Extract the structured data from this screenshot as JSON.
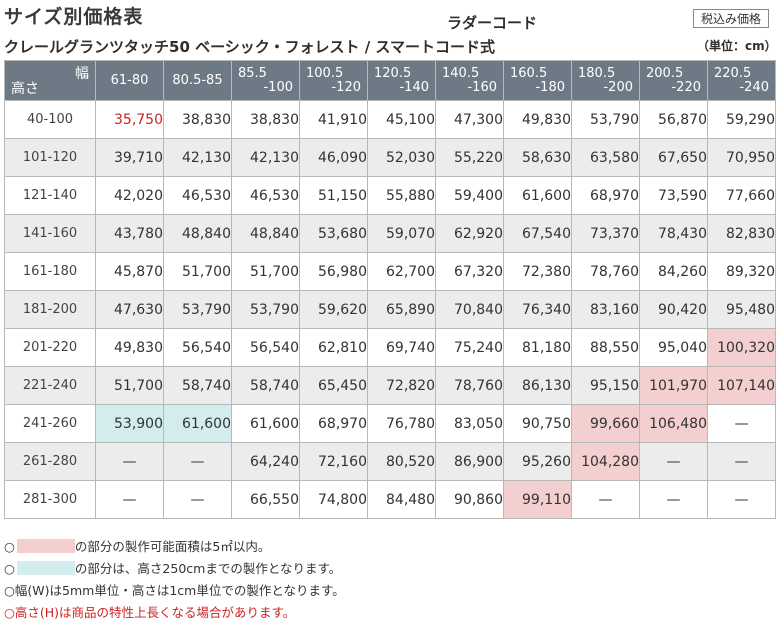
{
  "header": {
    "title": "サイズ別価格表",
    "product": "クレールグランツタッチ50 ベーシック・フォレスト / スマートコード式",
    "ladder": "ラダーコード",
    "tax_label": "税込み価格",
    "unit": "（単位：cm）"
  },
  "table": {
    "corner_width": "幅",
    "corner_height": "高さ",
    "columns": [
      {
        "l1": "61-80",
        "l2": ""
      },
      {
        "l1": "80.5-85",
        "l2": ""
      },
      {
        "l1": "85.5",
        "l2": "-100"
      },
      {
        "l1": "100.5",
        "l2": "-120"
      },
      {
        "l1": "120.5",
        "l2": "-140"
      },
      {
        "l1": "140.5",
        "l2": "-160"
      },
      {
        "l1": "160.5",
        "l2": "-180"
      },
      {
        "l1": "180.5",
        "l2": "-200"
      },
      {
        "l1": "200.5",
        "l2": "-220"
      },
      {
        "l1": "220.5",
        "l2": "-240"
      }
    ],
    "rows": [
      {
        "height": "40-100",
        "values": [
          "35,750",
          "38,830",
          "38,830",
          "41,910",
          "45,100",
          "47,300",
          "49,830",
          "53,790",
          "56,870",
          "59,290"
        ]
      },
      {
        "height": "101-120",
        "values": [
          "39,710",
          "42,130",
          "42,130",
          "46,090",
          "52,030",
          "55,220",
          "58,630",
          "63,580",
          "67,650",
          "70,950"
        ]
      },
      {
        "height": "121-140",
        "values": [
          "42,020",
          "46,530",
          "46,530",
          "51,150",
          "55,880",
          "59,400",
          "61,600",
          "68,970",
          "73,590",
          "77,660"
        ]
      },
      {
        "height": "141-160",
        "values": [
          "43,780",
          "48,840",
          "48,840",
          "53,680",
          "59,070",
          "62,920",
          "67,540",
          "73,370",
          "78,430",
          "82,830"
        ]
      },
      {
        "height": "161-180",
        "values": [
          "45,870",
          "51,700",
          "51,700",
          "56,980",
          "62,700",
          "67,320",
          "72,380",
          "78,760",
          "84,260",
          "89,320"
        ]
      },
      {
        "height": "181-200",
        "values": [
          "47,630",
          "53,790",
          "53,790",
          "59,620",
          "65,890",
          "70,840",
          "76,340",
          "83,160",
          "90,420",
          "95,480"
        ]
      },
      {
        "height": "201-220",
        "values": [
          "49,830",
          "56,540",
          "56,540",
          "62,810",
          "69,740",
          "75,240",
          "81,180",
          "88,550",
          "95,040",
          "100,320"
        ]
      },
      {
        "height": "221-240",
        "values": [
          "51,700",
          "58,740",
          "58,740",
          "65,450",
          "72,820",
          "78,760",
          "86,130",
          "95,150",
          "101,970",
          "107,140"
        ]
      },
      {
        "height": "241-260",
        "values": [
          "53,900",
          "61,600",
          "61,600",
          "68,970",
          "76,780",
          "83,050",
          "90,750",
          "99,660",
          "106,480",
          "—"
        ]
      },
      {
        "height": "261-280",
        "values": [
          "—",
          "—",
          "64,240",
          "72,160",
          "80,520",
          "86,900",
          "95,260",
          "104,280",
          "—",
          "—"
        ]
      },
      {
        "height": "281-300",
        "values": [
          "—",
          "—",
          "66,550",
          "74,800",
          "84,480",
          "90,860",
          "99,110",
          "—",
          "—",
          "—"
        ]
      }
    ],
    "colors": {
      "header_bg": "#6d7a85",
      "area_limit_pink": "#f3cfd0",
      "height_limit_blue": "#d3ecee",
      "highlight_red": "#cc2222",
      "stripe_gray": "#ececec"
    }
  },
  "notes": [
    {
      "prefix": "○",
      "swatch": "pink",
      "text": "の部分の製作可能面積は5㎡以内。"
    },
    {
      "prefix": "○",
      "swatch": "blue",
      "text": "の部分は、高さ250cmまでの製作となります。"
    },
    {
      "prefix": "",
      "swatch": "",
      "text": "○幅(W)は5mm単位・高さは1cm単位での製作となります。"
    },
    {
      "prefix": "",
      "swatch": "",
      "text": "○高さ(H)は商品の特性上長くなる場合があります。"
    }
  ]
}
